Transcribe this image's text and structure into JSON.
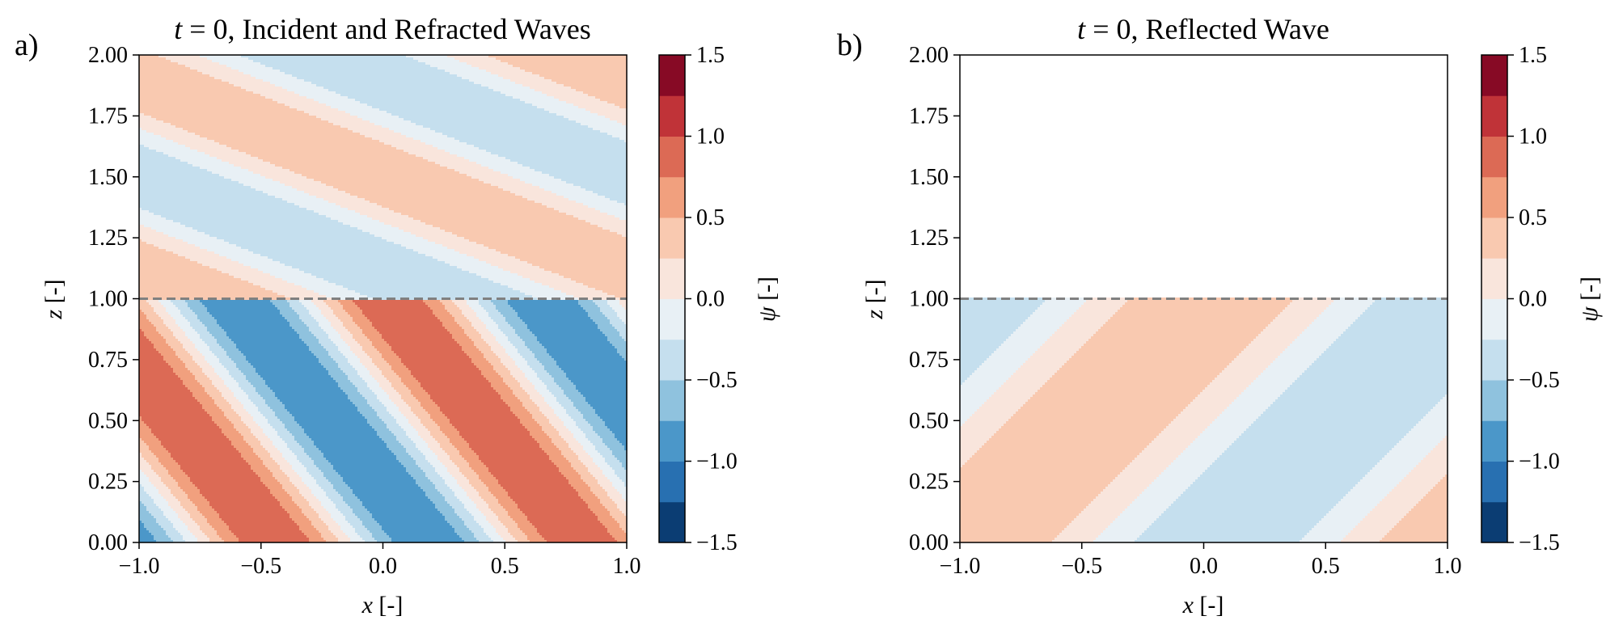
{
  "chart_data": [
    {
      "type": "heatmap",
      "panel_label": "a)",
      "title": "t = 0, Incident and Refracted Waves",
      "xlabel": "x [-]",
      "ylabel": "z [-]",
      "xlim": [
        -1.0,
        1.0
      ],
      "ylim": [
        0.0,
        2.0
      ],
      "xticks": [
        "−1.0",
        "−0.5",
        "0.0",
        "0.5",
        "1.0"
      ],
      "yticks": [
        "0.00",
        "0.25",
        "0.50",
        "0.75",
        "1.00",
        "1.25",
        "1.50",
        "1.75",
        "2.00"
      ],
      "interface_z": 1.0,
      "regions": [
        {
          "z_range": [
            1.0,
            2.0
          ],
          "amplitude": 0.5,
          "kx": 3.1,
          "kz": 8.0,
          "phase": 0.5
        },
        {
          "z_range": [
            0.0,
            1.0
          ],
          "amplitude": 1.0,
          "kx": 5.0,
          "kz": 4.0,
          "phase": 2.2
        }
      ],
      "colorbar": {
        "label": "ψ [-]",
        "min": -1.5,
        "max": 1.5,
        "ticks": [
          "−1.5",
          "−1.0",
          "−0.5",
          "0.0",
          "0.5",
          "1.0",
          "1.5"
        ]
      }
    },
    {
      "type": "heatmap",
      "panel_label": "b)",
      "title": "t = 0, Reflected Wave",
      "xlabel": "x [-]",
      "ylabel": "z [-]",
      "xlim": [
        -1.0,
        1.0
      ],
      "ylim": [
        0.0,
        2.0
      ],
      "xticks": [
        "−1.0",
        "−0.5",
        "0.0",
        "0.5",
        "1.0"
      ],
      "yticks": [
        "0.00",
        "0.25",
        "0.50",
        "0.75",
        "1.00",
        "1.25",
        "1.50",
        "1.75",
        "2.00"
      ],
      "interface_z": 1.0,
      "regions": [
        {
          "z_range": [
            0.0,
            1.0
          ],
          "amplitude": 0.5,
          "kx": 3.1,
          "kz": -3.1,
          "phase": 3.0
        }
      ],
      "colorbar": {
        "label": "ψ [-]",
        "min": -1.5,
        "max": 1.5,
        "ticks": [
          "−1.5",
          "−1.0",
          "−0.5",
          "0.0",
          "0.5",
          "1.0",
          "1.5"
        ]
      }
    }
  ],
  "colors": {
    "levels": [
      "#0b3d73",
      "#2870b1",
      "#4b97c9",
      "#8fc2de",
      "#c5dfee",
      "#e8f0f5",
      "#f9e5dc",
      "#f9c9b0",
      "#f1a07e",
      "#dc6a55",
      "#c03338",
      "#870a25"
    ],
    "interface_line": "#808080"
  }
}
